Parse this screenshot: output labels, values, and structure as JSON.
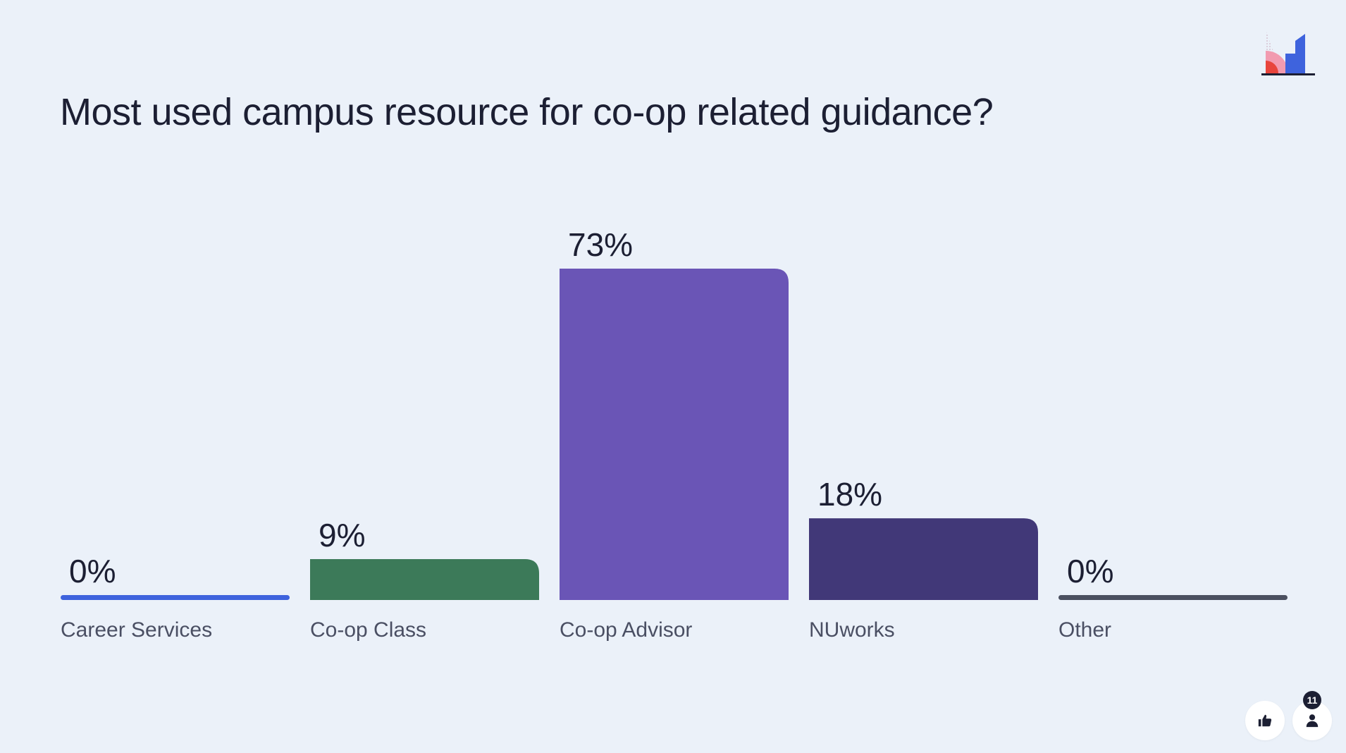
{
  "question": {
    "title": "Most used campus resource for co-op related guidance?"
  },
  "colors": {
    "background": "#ebf1f9",
    "text": "#1c1f33",
    "label": "#4a4f63"
  },
  "chart_data": {
    "type": "bar",
    "title": "Most used campus resource for co-op related guidance?",
    "categories": [
      "Career Services",
      "Co-op Class",
      "Co-op Advisor",
      "NUworks",
      "Other"
    ],
    "values": [
      0,
      9,
      73,
      18,
      0
    ],
    "value_labels": [
      "0%",
      "9%",
      "73%",
      "18%",
      "0%"
    ],
    "unit": "%",
    "colors": [
      "#3e63dd",
      "#3c7a59",
      "#6a55b6",
      "#413878",
      "#4b5060"
    ],
    "ylim": [
      0,
      73
    ],
    "grid": false,
    "legend": "none"
  },
  "footer": {
    "participants_count": "11",
    "like_icon": "thumbs-up-icon",
    "participants_icon": "person-icon"
  }
}
